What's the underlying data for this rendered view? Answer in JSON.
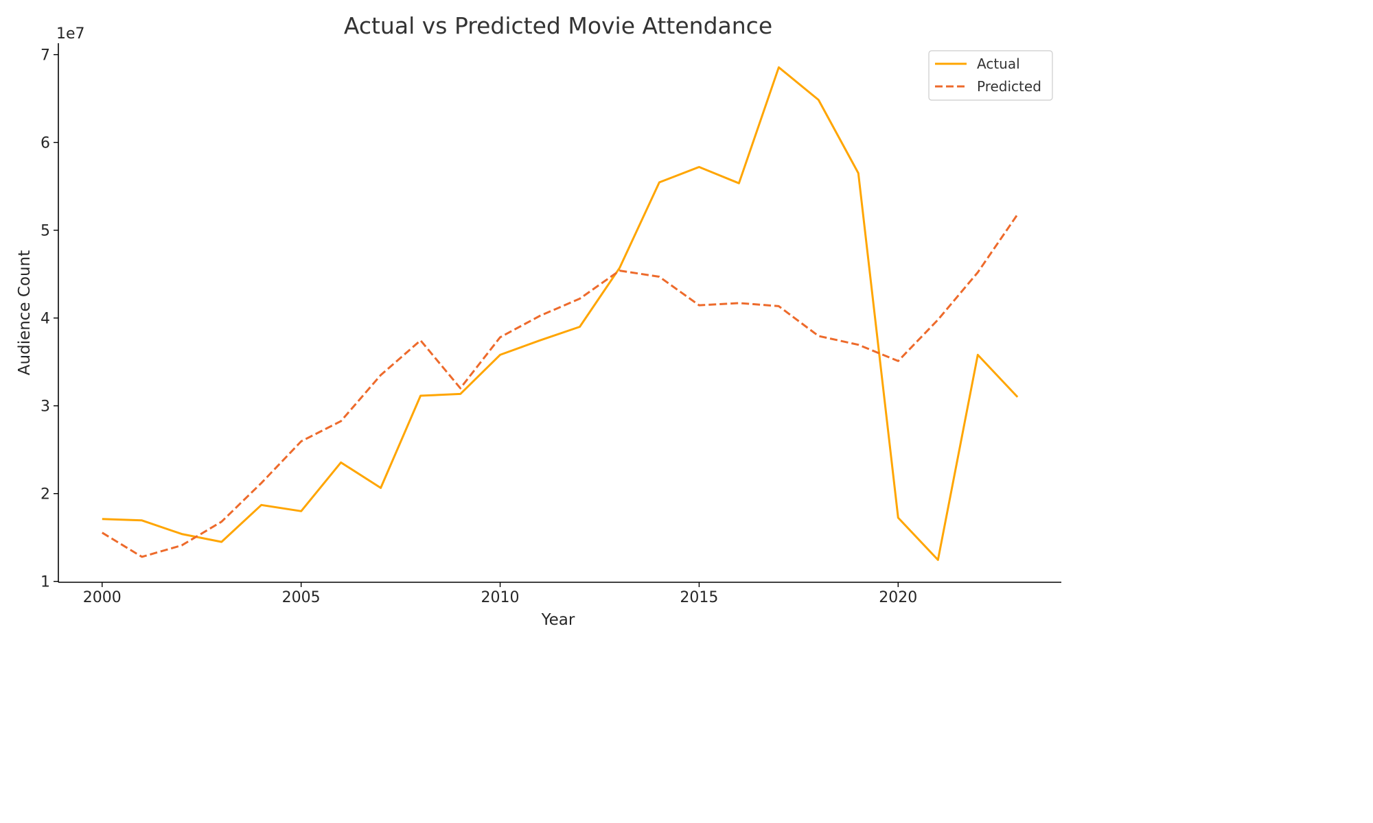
{
  "chart_data": {
    "type": "line",
    "title": "Actual vs Predicted Movie Attendance",
    "xlabel": "Year",
    "ylabel": "Audience Count",
    "y_offset_label": "1e7",
    "x": [
      2000,
      2001,
      2002,
      2003,
      2004,
      2005,
      2006,
      2007,
      2008,
      2009,
      2010,
      2011,
      2012,
      2013,
      2014,
      2015,
      2016,
      2017,
      2018,
      2019,
      2020,
      2021,
      2022,
      2023
    ],
    "series": [
      {
        "name": "Actual",
        "color": "#ffa500",
        "style": "solid",
        "values": [
          17100000,
          16950000,
          15400000,
          14500000,
          18700000,
          18000000,
          23550000,
          20650000,
          31150000,
          31350000,
          35800000,
          37450000,
          39000000,
          45700000,
          55450000,
          57200000,
          55350000,
          68550000,
          64850000,
          56500000,
          17250000,
          12450000,
          35800000,
          31000000
        ]
      },
      {
        "name": "Predicted",
        "color": "#ed6a2b",
        "style": "dashed",
        "values": [
          15550000,
          12800000,
          14100000,
          16800000,
          21200000,
          25950000,
          28250000,
          33500000,
          37450000,
          32000000,
          37800000,
          40250000,
          42200000,
          45400000,
          44700000,
          41450000,
          41700000,
          41350000,
          37950000,
          36950000,
          35100000,
          39800000,
          45200000,
          51800000
        ]
      }
    ],
    "xlim": [
      1998.9,
      2024.1
    ],
    "ylim": [
      9900000,
      71300000
    ],
    "x_ticks": [
      2000,
      2005,
      2010,
      2015,
      2020
    ],
    "x_tick_labels": [
      "2000",
      "2005",
      "2010",
      "2015",
      "2020"
    ],
    "y_ticks": [
      10000000,
      20000000,
      30000000,
      40000000,
      50000000,
      60000000,
      70000000
    ],
    "y_tick_labels": [
      "1",
      "2",
      "3",
      "4",
      "5",
      "6",
      "7"
    ],
    "grid": false,
    "legend_position": "top-right"
  }
}
